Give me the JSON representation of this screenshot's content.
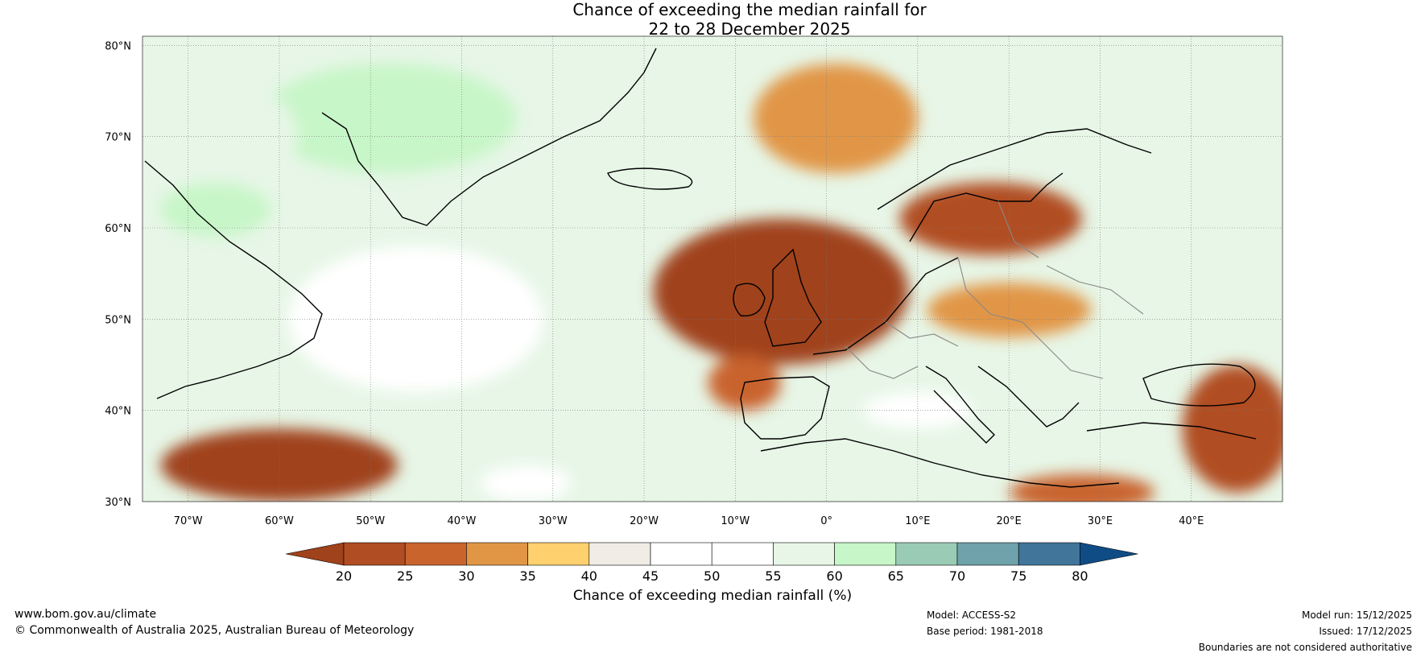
{
  "title": {
    "line1": "Chance of exceeding the median rainfall for",
    "line2": "22 to 28 December 2025"
  },
  "map": {
    "lon_range": [
      -75,
      50
    ],
    "lat_range": [
      30,
      81
    ],
    "lat_ticks": [
      {
        "value": 80,
        "label": "80°N"
      },
      {
        "value": 70,
        "label": "70°N"
      },
      {
        "value": 60,
        "label": "60°N"
      },
      {
        "value": 50,
        "label": "50°N"
      },
      {
        "value": 40,
        "label": "40°N"
      },
      {
        "value": 30,
        "label": "30°N"
      }
    ],
    "lon_ticks": [
      {
        "value": -70,
        "label": "70°W"
      },
      {
        "value": -60,
        "label": "60°W"
      },
      {
        "value": -50,
        "label": "50°W"
      },
      {
        "value": -40,
        "label": "40°W"
      },
      {
        "value": -30,
        "label": "30°W"
      },
      {
        "value": -20,
        "label": "20°W"
      },
      {
        "value": -10,
        "label": "10°W"
      },
      {
        "value": 0,
        "label": "0°"
      },
      {
        "value": 10,
        "label": "10°E"
      },
      {
        "value": 20,
        "label": "20°E"
      },
      {
        "value": 30,
        "label": "30°E"
      },
      {
        "value": 40,
        "label": "40°E"
      }
    ],
    "regions": [
      {
        "name": "greenland-wet",
        "category": 9,
        "lon": -48,
        "lat": 72,
        "rlon": 14,
        "rlat": 6
      },
      {
        "name": "canada-north-wet",
        "category": 8,
        "lon": -66,
        "lat": 70,
        "rlon": 8,
        "rlat": 6
      },
      {
        "name": "labrador-wet",
        "category": 9,
        "lon": -67,
        "lat": 62,
        "rlon": 6,
        "rlat": 3
      },
      {
        "name": "svalbard-sea-wet",
        "category": 8,
        "lon": 16,
        "lat": 79,
        "rlon": 8,
        "rlat": 2
      },
      {
        "name": "newfoundland-sea-wet",
        "category": 6,
        "lon": -45,
        "lat": 50,
        "rlon": 14,
        "rlat": 8
      },
      {
        "name": "iceland-sea-dry",
        "category": 3,
        "lon": 1,
        "lat": 72,
        "rlon": 9,
        "rlat": 6
      },
      {
        "name": "north-atlantic-dry",
        "category": 0,
        "lon": -5,
        "lat": 53,
        "rlon": 14,
        "rlat": 8
      },
      {
        "name": "scandinavia-dry",
        "category": 1,
        "lon": 18,
        "lat": 61,
        "rlon": 10,
        "rlat": 4
      },
      {
        "name": "central-europe-dry",
        "category": 3,
        "lon": 20,
        "lat": 51,
        "rlon": 9,
        "rlat": 3
      },
      {
        "name": "iberia-dry",
        "category": 2,
        "lon": -9,
        "lat": 43,
        "rlon": 4,
        "rlat": 3
      },
      {
        "name": "atlantic-southwest-dry",
        "category": 0,
        "lon": -60,
        "lat": 34,
        "rlon": 13,
        "rlat": 4
      },
      {
        "name": "mediterranean-wet",
        "category": 7,
        "lon": 10,
        "lat": 40,
        "rlon": 6,
        "rlat": 2
      },
      {
        "name": "aegean-wet",
        "category": 8,
        "lon": 23,
        "lat": 38,
        "rlon": 3,
        "rlat": 2
      },
      {
        "name": "middle-east-dry",
        "category": 1,
        "lon": 45,
        "lat": 38,
        "rlon": 6,
        "rlat": 7
      },
      {
        "name": "north-africa-dry",
        "category": 2,
        "lon": 28,
        "lat": 31,
        "rlon": 8,
        "rlat": 2
      },
      {
        "name": "canaries-wet",
        "category": 7,
        "lon": -33,
        "lat": 32,
        "rlon": 5,
        "rlat": 2
      }
    ]
  },
  "legend": {
    "colors": [
      "#a0421b",
      "#b14d22",
      "#c9642d",
      "#e19646",
      "#fed06e",
      "#f1ece6",
      "#ffffff",
      "#ffffff",
      "#e7f6e7",
      "#c7f6c8",
      "#9acbb4",
      "#6fa2aa",
      "#41759a",
      "#0f4c85"
    ],
    "ticks": [
      "20",
      "25",
      "30",
      "35",
      "40",
      "45",
      "50",
      "55",
      "60",
      "65",
      "70",
      "75",
      "80"
    ],
    "label": "Chance of exceeding median rainfall (%)"
  },
  "footer": {
    "website": "www.bom.gov.au/climate",
    "copyright": "© Commonwealth of Australia 2025, Australian Bureau of Meteorology",
    "model": "Model: ACCESS-S2",
    "base_period": "Base period: 1981-2018",
    "model_run": "Model run: 15/12/2025",
    "issued": "Issued: 17/12/2025",
    "disclaimer": "Boundaries are not considered authoritative"
  }
}
